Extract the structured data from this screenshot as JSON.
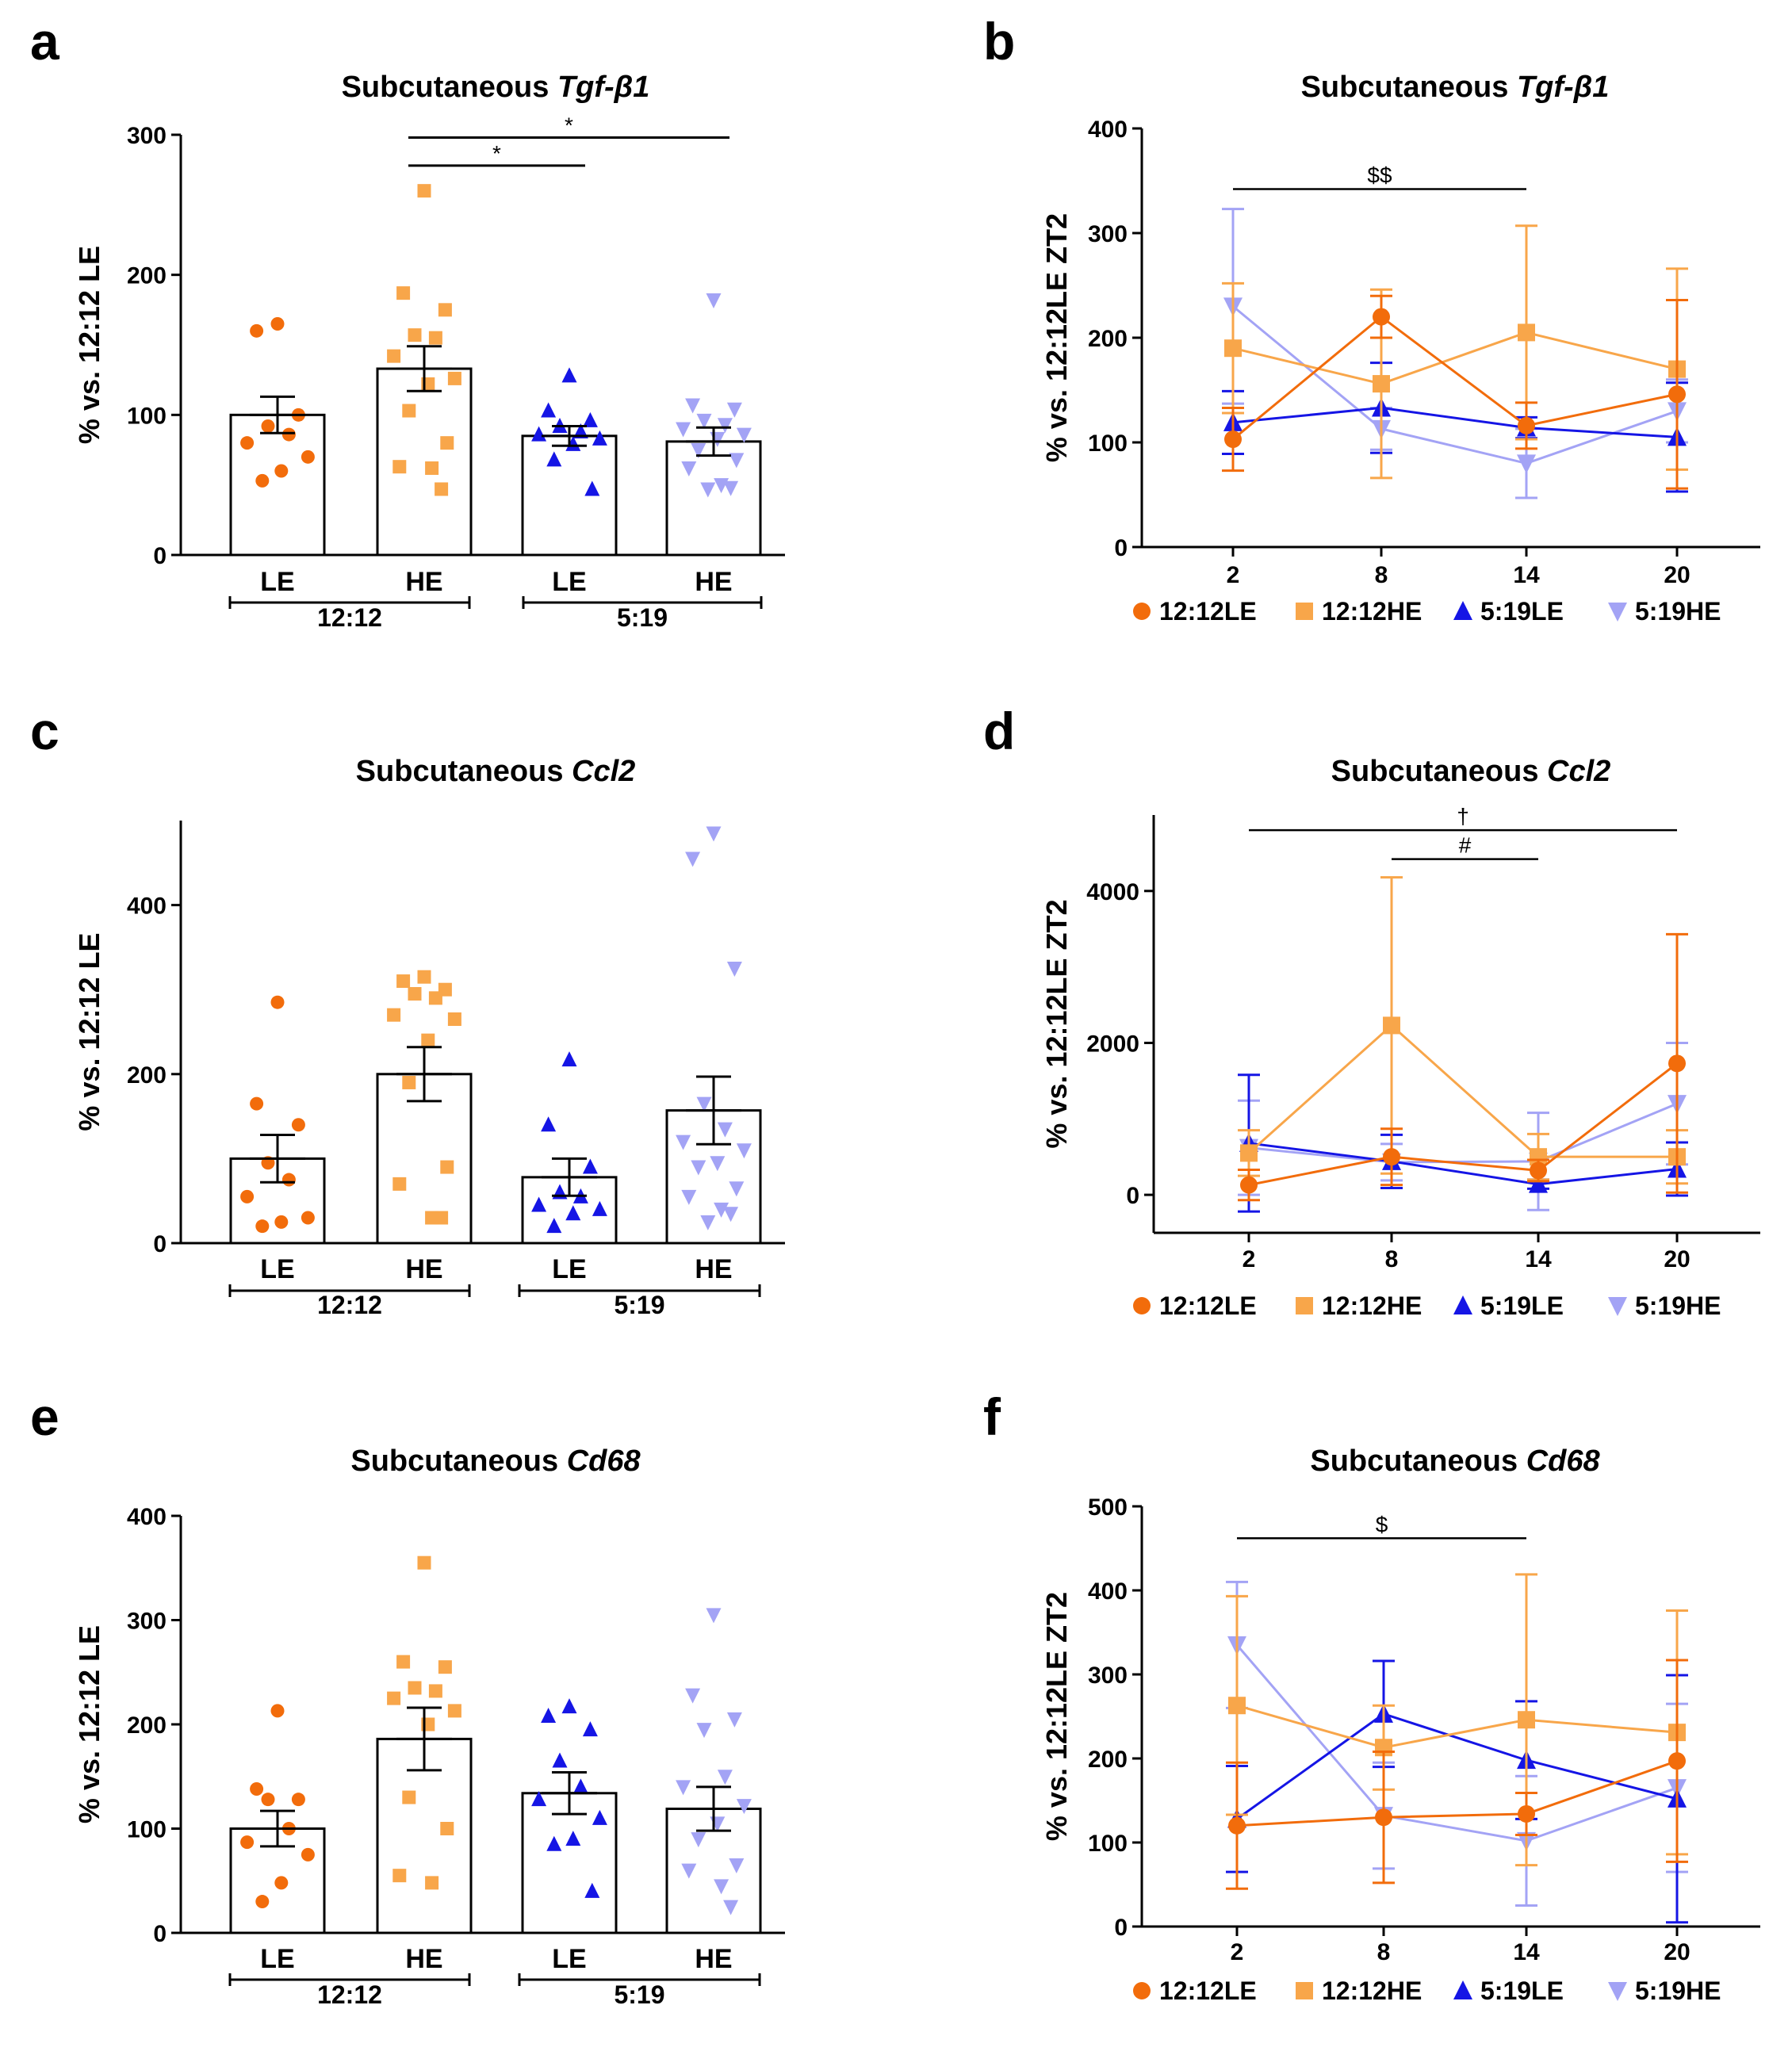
{
  "colors": {
    "12:12LE": "#F26C0B",
    "12:12HE": "#F8A64A",
    "5:19LE": "#1515E5",
    "5:19HE": "#A3A3F5"
  },
  "markers": {
    "12:12LE": "circle",
    "12:12HE": "square",
    "5:19LE": "triangle-up",
    "5:19HE": "triangle-down"
  },
  "chart_data": [
    {
      "panel": "a",
      "type": "bar",
      "title": "Subcutaneous ",
      "gene": "Tgf-β1",
      "ylabel": "% vs. 12:12 LE",
      "ylim": [
        0,
        300
      ],
      "yticks": [
        0,
        100,
        200,
        300
      ],
      "categories": [
        "LE",
        "HE",
        "LE",
        "HE"
      ],
      "groups": [
        {
          "label": "12:12"
        },
        {
          "label": "5:19"
        }
      ],
      "series": [
        {
          "name": "12:12LE",
          "mean": 100,
          "sem": 13,
          "points": [
            165,
            160,
            100,
            92,
            86,
            80,
            70,
            60,
            53
          ]
        },
        {
          "name": "12:12HE",
          "mean": 133,
          "sem": 16,
          "points": [
            260,
            187,
            175,
            157,
            155,
            142,
            126,
            122,
            103,
            80,
            63,
            62,
            47
          ]
        },
        {
          "name": "5:19LE",
          "mean": 85,
          "sem": 7,
          "points": [
            128,
            103,
            96,
            92,
            88,
            86,
            83,
            79,
            68,
            47
          ]
        },
        {
          "name": "5:19HE",
          "mean": 81,
          "sem": 10,
          "points": [
            182,
            107,
            104,
            96,
            93,
            90,
            86,
            83,
            75,
            68,
            62,
            50,
            48,
            47
          ]
        }
      ],
      "significance": [
        {
          "from": 1,
          "to": 2,
          "label": "*",
          "y": 278
        },
        {
          "from": 1,
          "to": 3,
          "label": "*",
          "y": 298
        }
      ]
    },
    {
      "panel": "b",
      "type": "line",
      "title": "Subcutaneous ",
      "gene": "Tgf-β1",
      "ylabel": "% vs. 12:12LE ZT2",
      "ylim": [
        0,
        400
      ],
      "yticks": [
        0,
        100,
        200,
        300,
        400
      ],
      "x": [
        2,
        8,
        14,
        20
      ],
      "xlim": [
        -1,
        23
      ],
      "series": [
        {
          "name": "12:12LE",
          "values": [
            103,
            220,
            116,
            146
          ],
          "err": [
            30,
            20,
            22,
            90
          ]
        },
        {
          "name": "12:12HE",
          "values": [
            190,
            156,
            205,
            170
          ],
          "err": [
            62,
            90,
            102,
            96
          ]
        },
        {
          "name": "5:19LE",
          "values": [
            119,
            133,
            114,
            105
          ],
          "err": [
            30,
            43,
            10,
            52
          ]
        },
        {
          "name": "5:19HE",
          "values": [
            230,
            113,
            80,
            130
          ],
          "err": [
            93,
            20,
            33,
            30
          ]
        }
      ],
      "significance": [
        {
          "x1": 2,
          "x2": 14,
          "label": "$$",
          "y": 342
        }
      ],
      "legend": [
        "12:12LE",
        "12:12HE",
        "5:19LE",
        "5:19HE"
      ]
    },
    {
      "panel": "c",
      "type": "bar",
      "title": "Subcutaneous ",
      "gene": "Ccl2",
      "ylabel": "% vs. 12:12 LE",
      "ylim": [
        0,
        500
      ],
      "yticks": [
        0,
        200,
        400
      ],
      "categories": [
        "LE",
        "HE",
        "LE",
        "HE"
      ],
      "groups": [
        {
          "label": "12:12"
        },
        {
          "label": "5:19"
        }
      ],
      "series": [
        {
          "name": "12:12LE",
          "mean": 100,
          "sem": 28,
          "points": [
            285,
            165,
            140,
            95,
            75,
            55,
            30,
            25,
            20
          ]
        },
        {
          "name": "12:12HE",
          "mean": 200,
          "sem": 32,
          "points": [
            315,
            310,
            300,
            295,
            290,
            270,
            265,
            240,
            190,
            90,
            70,
            30,
            30
          ]
        },
        {
          "name": "5:19LE",
          "mean": 78,
          "sem": 22,
          "points": [
            217,
            140,
            90,
            60,
            55,
            45,
            40,
            35,
            20
          ]
        },
        {
          "name": "5:19HE",
          "mean": 157,
          "sem": 40,
          "points": [
            485,
            455,
            325,
            165,
            135,
            120,
            110,
            95,
            90,
            65,
            55,
            40,
            35,
            25
          ]
        }
      ],
      "significance": []
    },
    {
      "panel": "d",
      "type": "line",
      "title": "Subcutaneous ",
      "gene": "Ccl2",
      "ylabel": "% vs. 12:12LE ZT2",
      "ylim": [
        -500,
        5000
      ],
      "yticks": [
        0,
        2000,
        4000
      ],
      "x": [
        2,
        8,
        14,
        20
      ],
      "xlim": [
        -1,
        23
      ],
      "series": [
        {
          "name": "12:12LE",
          "values": [
            130,
            500,
            320,
            1730
          ],
          "err": [
            200,
            370,
            140,
            1700
          ]
        },
        {
          "name": "12:12HE",
          "values": [
            550,
            2230,
            500,
            500
          ],
          "err": [
            300,
            1950,
            300,
            350
          ]
        },
        {
          "name": "5:19LE",
          "values": [
            680,
            440,
            140,
            340
          ],
          "err": [
            900,
            350,
            60,
            350
          ]
        },
        {
          "name": "5:19HE",
          "values": [
            620,
            430,
            440,
            1200
          ],
          "err": [
            620,
            240,
            640,
            800
          ]
        }
      ],
      "significance": [
        {
          "x1": 2,
          "x2": 20,
          "label": "†",
          "y": 4800
        },
        {
          "x1": 8,
          "x2": 14,
          "label": "#",
          "y": 4420
        }
      ],
      "legend": [
        "12:12LE",
        "12:12HE",
        "5:19LE",
        "5:19HE"
      ]
    },
    {
      "panel": "e",
      "type": "bar",
      "title": "Subcutaneous ",
      "gene": "Cd68",
      "ylabel": "% vs. 12:12 LE",
      "ylim": [
        0,
        400
      ],
      "yticks": [
        0,
        100,
        200,
        300,
        400
      ],
      "categories": [
        "LE",
        "HE",
        "LE",
        "HE"
      ],
      "groups": [
        {
          "label": "12:12"
        },
        {
          "label": "5:19"
        }
      ],
      "series": [
        {
          "name": "12:12LE",
          "mean": 100,
          "sem": 17,
          "points": [
            213,
            138,
            128,
            128,
            100,
            87,
            75,
            48,
            30
          ]
        },
        {
          "name": "12:12HE",
          "mean": 186,
          "sem": 30,
          "points": [
            355,
            260,
            255,
            235,
            232,
            225,
            213,
            200,
            130,
            100,
            55,
            48
          ]
        },
        {
          "name": "5:19LE",
          "mean": 134,
          "sem": 20,
          "points": [
            217,
            208,
            195,
            165,
            140,
            128,
            110,
            90,
            85,
            40
          ]
        },
        {
          "name": "5:19HE",
          "mean": 119,
          "sem": 21,
          "points": [
            305,
            228,
            205,
            195,
            150,
            140,
            122,
            105,
            90,
            65,
            60,
            45,
            25
          ]
        }
      ],
      "significance": []
    },
    {
      "panel": "f",
      "type": "line",
      "title": "Subcutaneous ",
      "gene": "Cd68",
      "ylabel": "% vs. 12:12LE ZT2",
      "ylim": [
        0,
        500
      ],
      "yticks": [
        0,
        100,
        200,
        300,
        400,
        500
      ],
      "x": [
        2,
        8,
        14,
        20
      ],
      "xlim": [
        -1,
        23
      ],
      "series": [
        {
          "name": "12:12LE",
          "values": [
            120,
            130,
            134,
            197
          ],
          "err": [
            75,
            78,
            25,
            120
          ]
        },
        {
          "name": "12:12HE",
          "values": [
            263,
            213,
            246,
            231
          ],
          "err": [
            130,
            50,
            173,
            145
          ]
        },
        {
          "name": "5:19LE",
          "values": [
            128,
            253,
            198,
            152
          ],
          "err": [
            63,
            63,
            70,
            147
          ]
        },
        {
          "name": "5:19HE",
          "values": [
            335,
            132,
            102,
            165
          ],
          "err": [
            75,
            63,
            77,
            100
          ]
        }
      ],
      "significance": [
        {
          "x1": 2,
          "x2": 14,
          "label": "$",
          "y": 462
        }
      ],
      "legend": [
        "12:12LE",
        "12:12HE",
        "5:19LE",
        "5:19HE"
      ]
    }
  ]
}
